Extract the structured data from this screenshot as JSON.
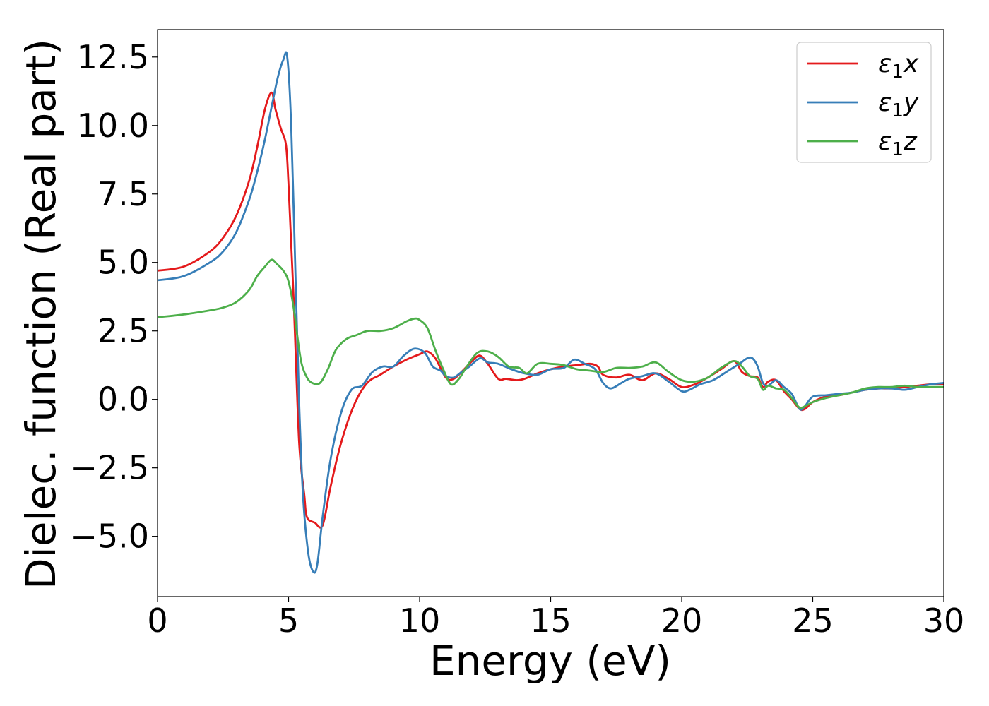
{
  "chart_data": {
    "type": "line",
    "title": "",
    "xlabel": "Energy (eV)",
    "ylabel": "Dielec. function (Real part)",
    "xlim": [
      0,
      30
    ],
    "ylim": [
      -7.2,
      13.5
    ],
    "x_ticks": [
      0,
      5,
      10,
      15,
      20,
      25,
      30
    ],
    "y_ticks": [
      -5.0,
      -2.5,
      0.0,
      2.5,
      5.0,
      7.5,
      10.0,
      12.5
    ],
    "x_tick_labels": [
      "0",
      "5",
      "10",
      "15",
      "20",
      "25",
      "30"
    ],
    "y_tick_labels": [
      "−5.0",
      "−2.5",
      "0.0",
      "2.5",
      "5.0",
      "7.5",
      "10.0",
      "12.5"
    ],
    "grid": false,
    "legend_position": "top-right",
    "series": [
      {
        "name": "ε₁x",
        "legend_base": "ε",
        "legend_sub": "1",
        "legend_var": "x",
        "color": "#e41a1c",
        "x": [
          0,
          1,
          2,
          2.5,
          3,
          3.5,
          3.8,
          4.1,
          4.35,
          4.5,
          4.7,
          4.9,
          5.0,
          5.2,
          5.4,
          5.6,
          5.7,
          6.0,
          6.3,
          6.6,
          7.0,
          7.5,
          8.0,
          8.5,
          9.0,
          9.5,
          10.0,
          10.3,
          10.6,
          11.0,
          11.3,
          11.7,
          12.0,
          12.3,
          12.6,
          13.0,
          13.3,
          13.7,
          14.0,
          14.5,
          15.0,
          15.5,
          16.0,
          16.5,
          16.8,
          17.0,
          17.5,
          18.0,
          18.5,
          19.0,
          19.5,
          20.0,
          20.5,
          21.0,
          21.5,
          22.0,
          22.3,
          22.6,
          22.9,
          23.1,
          23.3,
          23.6,
          23.9,
          24.2,
          24.5,
          24.7,
          25.0,
          25.5,
          26.0,
          26.5,
          27.0,
          27.5,
          28.0,
          28.5,
          29.0,
          29.5,
          30.0
        ],
        "y": [
          4.7,
          4.85,
          5.4,
          5.9,
          6.7,
          8.0,
          9.2,
          10.6,
          11.2,
          10.6,
          9.9,
          9.3,
          7.8,
          3.5,
          -1.5,
          -3.5,
          -4.3,
          -4.5,
          -4.6,
          -3.2,
          -1.6,
          -0.2,
          0.6,
          0.9,
          1.2,
          1.45,
          1.65,
          1.75,
          1.5,
          0.8,
          0.75,
          1.1,
          1.4,
          1.6,
          1.3,
          0.75,
          0.75,
          0.7,
          0.75,
          0.95,
          1.1,
          1.2,
          1.25,
          1.3,
          1.2,
          0.9,
          0.8,
          0.9,
          0.7,
          0.95,
          0.75,
          0.45,
          0.55,
          0.8,
          1.1,
          1.4,
          1.0,
          0.85,
          0.8,
          0.45,
          0.65,
          0.7,
          0.3,
          0.0,
          -0.35,
          -0.35,
          -0.1,
          0.1,
          0.15,
          0.25,
          0.35,
          0.4,
          0.4,
          0.45,
          0.5,
          0.55,
          0.55
        ]
      },
      {
        "name": "ε₁y",
        "legend_base": "ε",
        "legend_sub": "1",
        "legend_var": "y",
        "color": "#377eb8",
        "x": [
          0,
          1,
          2,
          2.5,
          3,
          3.5,
          3.8,
          4.1,
          4.4,
          4.6,
          4.8,
          4.95,
          5.1,
          5.25,
          5.4,
          5.55,
          5.75,
          5.95,
          6.1,
          6.3,
          6.6,
          7.0,
          7.4,
          7.8,
          8.2,
          8.6,
          9.0,
          9.4,
          9.8,
          10.2,
          10.5,
          10.8,
          11.0,
          11.3,
          11.6,
          11.9,
          12.3,
          12.6,
          13.0,
          13.5,
          14.0,
          14.5,
          15.0,
          15.5,
          15.9,
          16.3,
          16.7,
          17.0,
          17.3,
          17.7,
          18.0,
          18.5,
          19.0,
          19.5,
          20.0,
          20.3,
          20.7,
          21.2,
          21.7,
          22.2,
          22.5,
          22.7,
          22.9,
          23.1,
          23.3,
          23.6,
          23.9,
          24.2,
          24.5,
          24.7,
          25.0,
          25.5,
          26.0,
          26.5,
          27.0,
          27.5,
          28.0,
          28.5,
          29.0,
          29.5,
          30.0
        ],
        "y": [
          4.35,
          4.5,
          5.0,
          5.4,
          6.1,
          7.3,
          8.3,
          9.5,
          10.9,
          11.8,
          12.4,
          12.5,
          10.0,
          5.0,
          0.0,
          -3.5,
          -5.6,
          -6.3,
          -6.0,
          -4.3,
          -2.2,
          -0.5,
          0.35,
          0.5,
          1.0,
          1.2,
          1.2,
          1.6,
          1.85,
          1.7,
          1.2,
          1.05,
          0.85,
          0.8,
          1.0,
          1.2,
          1.5,
          1.35,
          1.3,
          1.1,
          0.95,
          0.9,
          1.1,
          1.15,
          1.45,
          1.3,
          1.1,
          0.6,
          0.4,
          0.6,
          0.75,
          0.85,
          0.95,
          0.65,
          0.3,
          0.35,
          0.55,
          0.7,
          1.0,
          1.3,
          1.5,
          1.5,
          1.2,
          0.6,
          0.5,
          0.7,
          0.45,
          0.2,
          -0.35,
          -0.25,
          0.1,
          0.15,
          0.2,
          0.25,
          0.35,
          0.4,
          0.4,
          0.35,
          0.45,
          0.55,
          0.6
        ]
      },
      {
        "name": "ε₁z",
        "legend_base": "ε",
        "legend_sub": "1",
        "legend_var": "z",
        "color": "#4daf4a",
        "x": [
          0,
          1,
          2,
          2.5,
          3,
          3.5,
          3.8,
          4.1,
          4.35,
          4.55,
          4.8,
          5.0,
          5.2,
          5.35,
          5.5,
          5.7,
          5.9,
          6.2,
          6.5,
          6.8,
          7.2,
          7.6,
          8.0,
          8.5,
          9.0,
          9.5,
          9.8,
          10.0,
          10.3,
          10.6,
          10.9,
          11.2,
          11.5,
          11.8,
          12.2,
          12.6,
          13.0,
          13.4,
          13.8,
          14.1,
          14.5,
          15.0,
          15.5,
          16.0,
          16.5,
          17.0,
          17.5,
          18.0,
          18.5,
          19.0,
          19.5,
          20.0,
          20.5,
          21.0,
          21.5,
          22.0,
          22.3,
          22.6,
          22.9,
          23.1,
          23.3,
          23.6,
          23.9,
          24.2,
          24.5,
          24.8,
          25.0,
          25.5,
          26.0,
          26.5,
          27.0,
          27.5,
          28.0,
          28.5,
          29.0,
          29.5,
          30.0
        ],
        "y": [
          3.0,
          3.1,
          3.25,
          3.35,
          3.55,
          4.0,
          4.5,
          4.85,
          5.1,
          4.95,
          4.7,
          4.3,
          3.3,
          2.2,
          1.3,
          0.8,
          0.6,
          0.6,
          1.1,
          1.8,
          2.2,
          2.35,
          2.5,
          2.5,
          2.6,
          2.85,
          2.95,
          2.9,
          2.6,
          1.8,
          1.1,
          0.55,
          0.75,
          1.2,
          1.7,
          1.75,
          1.55,
          1.2,
          1.15,
          0.95,
          1.3,
          1.3,
          1.25,
          1.1,
          1.05,
          1.0,
          1.15,
          1.15,
          1.2,
          1.35,
          1.0,
          0.7,
          0.65,
          0.8,
          1.15,
          1.4,
          1.2,
          0.85,
          0.75,
          0.35,
          0.5,
          0.4,
          0.35,
          0.05,
          -0.3,
          -0.2,
          -0.1,
          0.05,
          0.15,
          0.25,
          0.4,
          0.45,
          0.45,
          0.5,
          0.45,
          0.45,
          0.45
        ]
      }
    ]
  }
}
